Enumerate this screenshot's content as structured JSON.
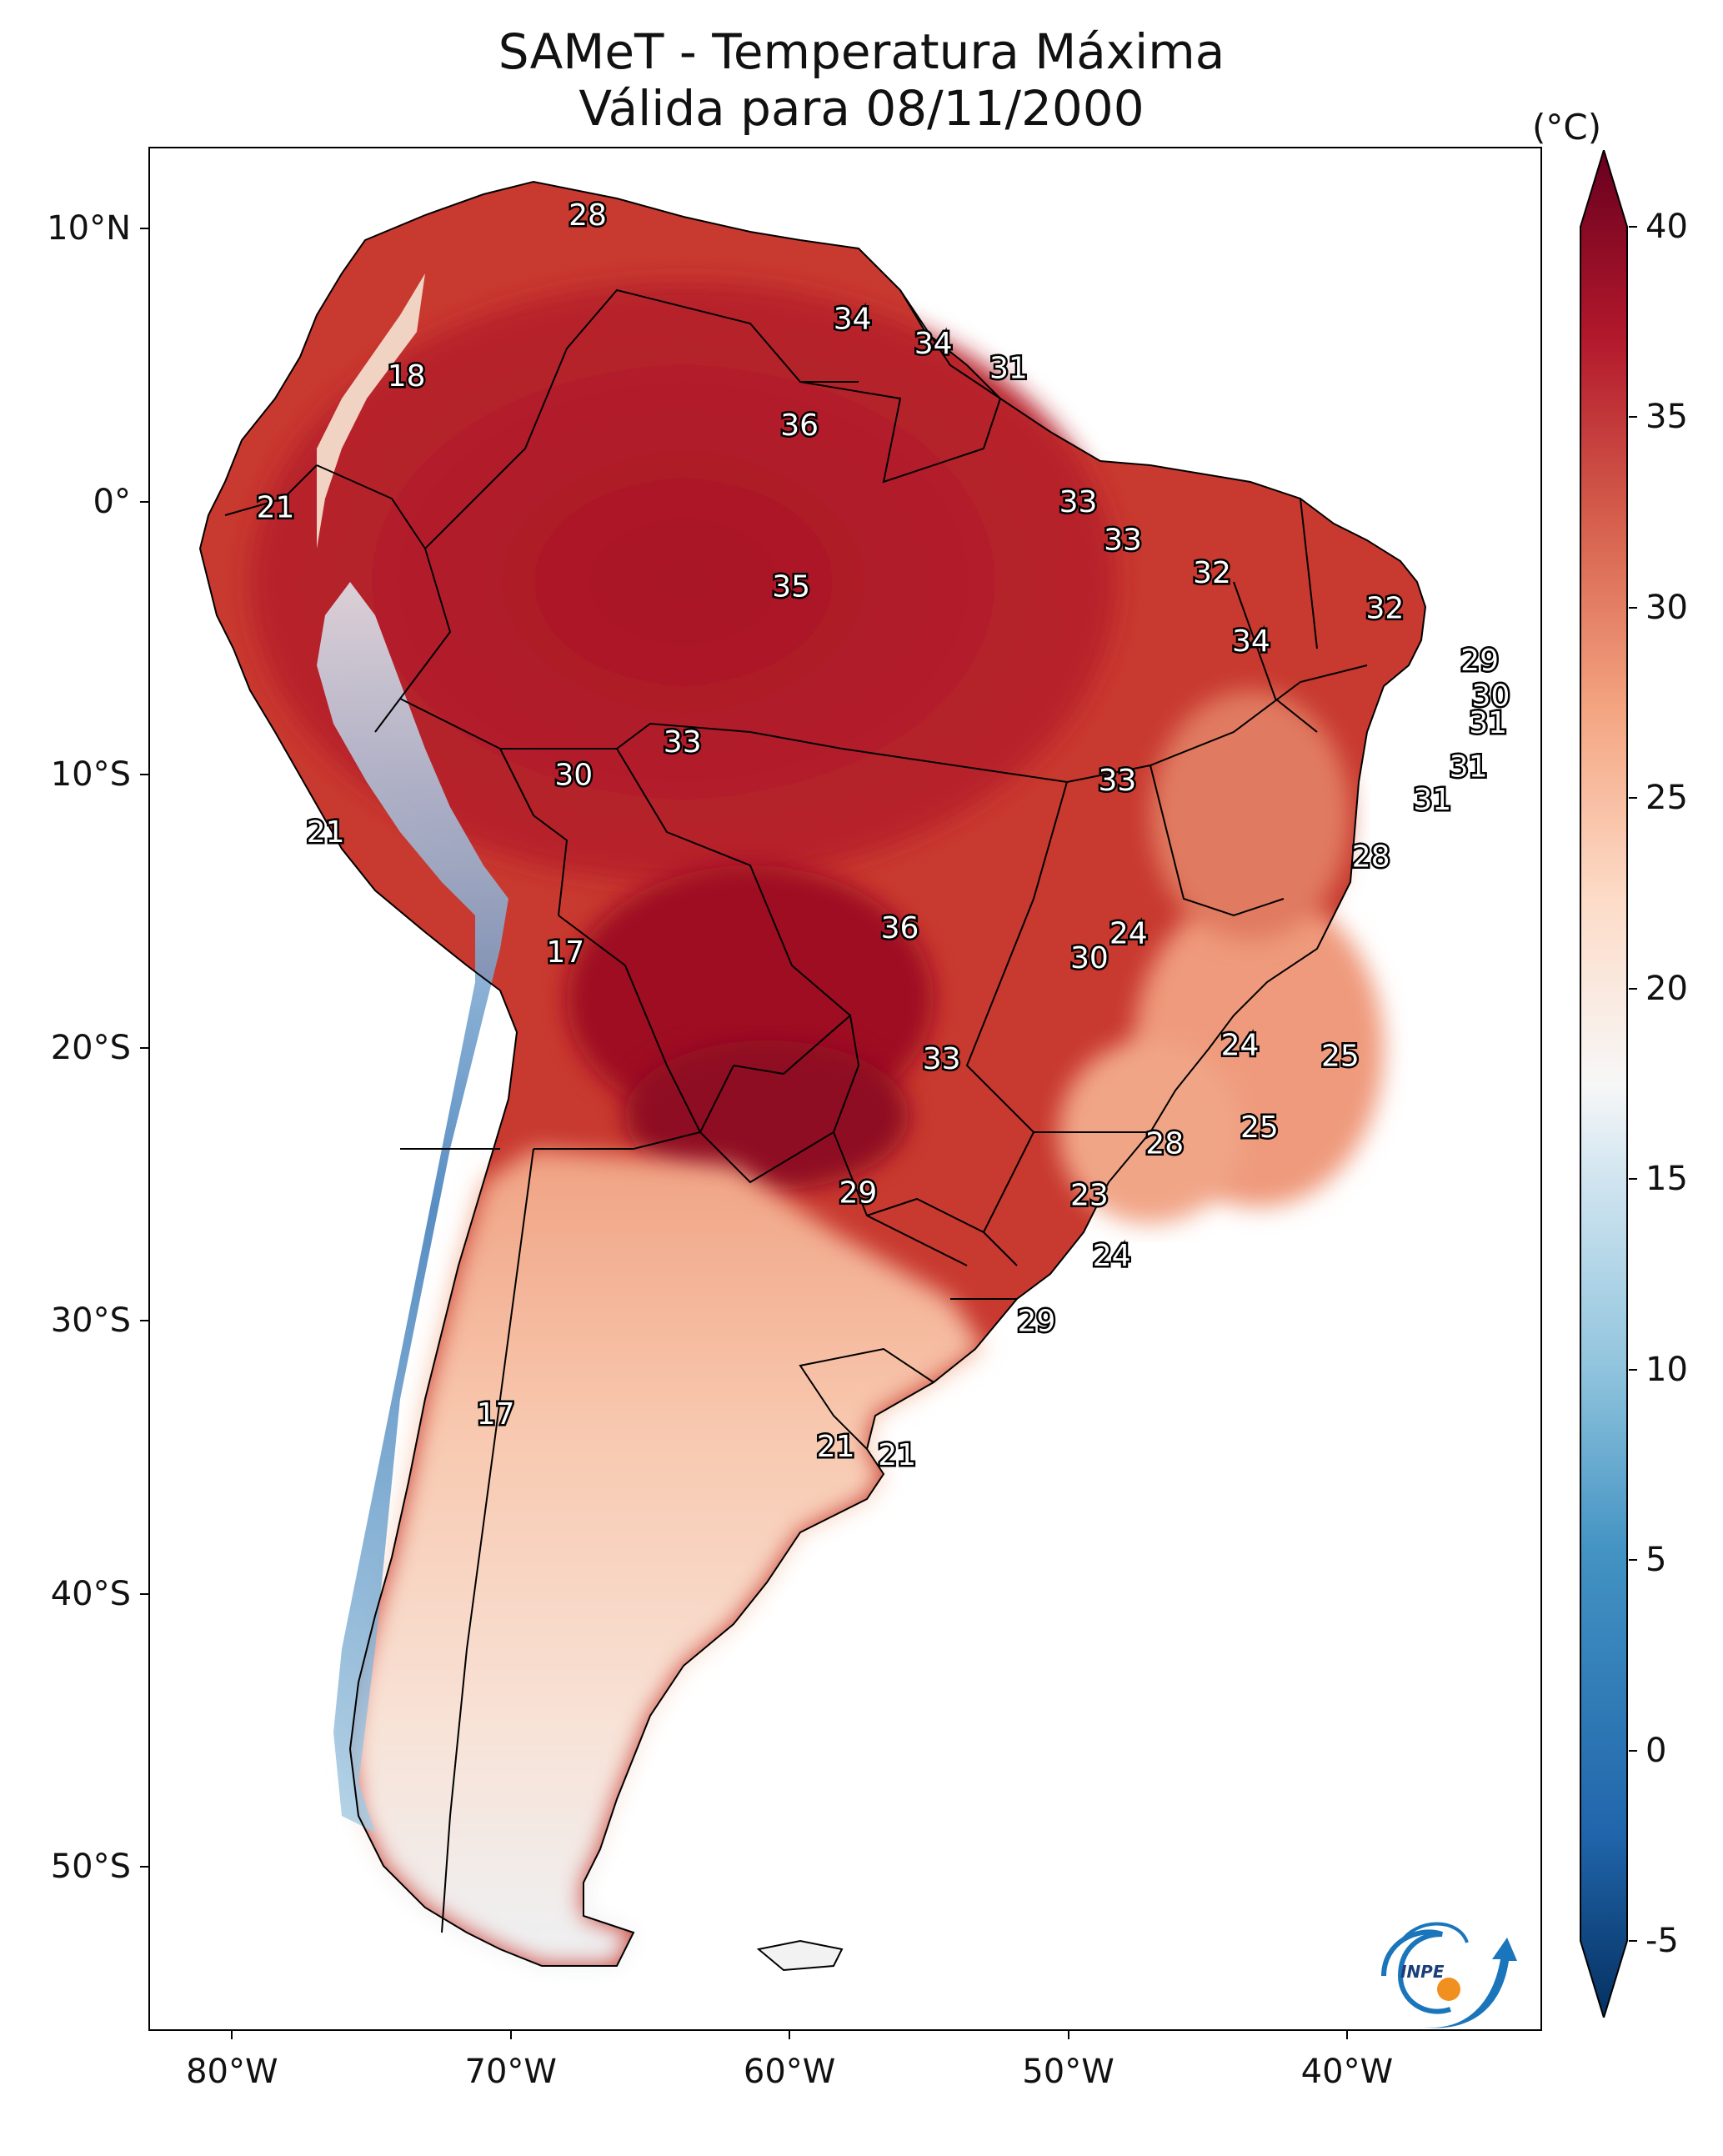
{
  "title": {
    "line1": "SAMeT - Temperatura Máxima",
    "line2": "Válida para 08/11/2000"
  },
  "axes": {
    "lat_ticks": [
      "10°N",
      "0°",
      "10°S",
      "20°S",
      "30°S",
      "40°S",
      "50°S"
    ],
    "lat_values": [
      10,
      0,
      -10,
      -20,
      -30,
      -40,
      -50
    ],
    "lon_ticks": [
      "80°W",
      "70°W",
      "60°W",
      "50°W",
      "40°W"
    ],
    "lon_values": [
      -80,
      -70,
      -60,
      -50,
      -40
    ],
    "lon_range": [
      -83,
      -33
    ],
    "lat_range": [
      -56,
      13
    ]
  },
  "colorbar": {
    "unit": "(°C)",
    "tick_labels": [
      "40",
      "35",
      "30",
      "25",
      "20",
      "15",
      "10",
      "5",
      "0",
      "-5"
    ],
    "tick_values": [
      40,
      35,
      30,
      25,
      20,
      15,
      10,
      5,
      0,
      -5
    ],
    "range": [
      -5,
      40
    ],
    "extend": "both",
    "colormap": "RdBu_r",
    "colors": [
      "#053061",
      "#2166ac",
      "#4393c3",
      "#92c5de",
      "#d1e5f0",
      "#f7f7f7",
      "#fddbc7",
      "#f4a582",
      "#d6604d",
      "#b2182b",
      "#67001f"
    ]
  },
  "station_labels": [
    {
      "value": "28",
      "lon": -67.3,
      "lat": 10.5
    },
    {
      "value": "18",
      "lon": -73.8,
      "lat": 4.6
    },
    {
      "value": "34",
      "lon": -57.8,
      "lat": 6.7
    },
    {
      "value": "34",
      "lon": -54.9,
      "lat": 5.8
    },
    {
      "value": "31",
      "lon": -52.2,
      "lat": 4.9
    },
    {
      "value": "36",
      "lon": -59.7,
      "lat": 2.8
    },
    {
      "value": "21",
      "lon": -78.5,
      "lat": -0.2
    },
    {
      "value": "33",
      "lon": -49.7,
      "lat": 0.0
    },
    {
      "value": "33",
      "lon": -48.1,
      "lat": -1.4
    },
    {
      "value": "35",
      "lon": -60.0,
      "lat": -3.1
    },
    {
      "value": "32",
      "lon": -44.9,
      "lat": -2.6
    },
    {
      "value": "32",
      "lon": -38.7,
      "lat": -3.9
    },
    {
      "value": "34",
      "lon": -43.5,
      "lat": -5.1
    },
    {
      "value": "29",
      "lon": -35.3,
      "lat": -5.8
    },
    {
      "value": "30",
      "lon": -34.9,
      "lat": -7.1
    },
    {
      "value": "31",
      "lon": -35.0,
      "lat": -8.1
    },
    {
      "value": "31",
      "lon": -35.7,
      "lat": -9.7
    },
    {
      "value": "31",
      "lon": -37.0,
      "lat": -10.9
    },
    {
      "value": "33",
      "lon": -63.9,
      "lat": -8.8
    },
    {
      "value": "30",
      "lon": -67.8,
      "lat": -10.0
    },
    {
      "value": "33",
      "lon": -48.3,
      "lat": -10.2
    },
    {
      "value": "28",
      "lon": -39.2,
      "lat": -13.0
    },
    {
      "value": "21",
      "lon": -76.7,
      "lat": -12.1
    },
    {
      "value": "36",
      "lon": -56.1,
      "lat": -15.6
    },
    {
      "value": "24",
      "lon": -47.9,
      "lat": -15.8
    },
    {
      "value": "30",
      "lon": -49.3,
      "lat": -16.7
    },
    {
      "value": "17",
      "lon": -68.1,
      "lat": -16.5
    },
    {
      "value": "24",
      "lon": -43.9,
      "lat": -19.9
    },
    {
      "value": "25",
      "lon": -40.3,
      "lat": -20.3
    },
    {
      "value": "33",
      "lon": -54.6,
      "lat": -20.4
    },
    {
      "value": "25",
      "lon": -43.2,
      "lat": -22.9
    },
    {
      "value": "28",
      "lon": -46.6,
      "lat": -23.5
    },
    {
      "value": "29",
      "lon": -57.6,
      "lat": -25.3
    },
    {
      "value": "23",
      "lon": -49.3,
      "lat": -25.4
    },
    {
      "value": "24",
      "lon": -48.5,
      "lat": -27.6
    },
    {
      "value": "29",
      "lon": -51.2,
      "lat": -30.0
    },
    {
      "value": "17",
      "lon": -70.6,
      "lat": -33.4
    },
    {
      "value": "21",
      "lon": -58.4,
      "lat": -34.6
    },
    {
      "value": "21",
      "lon": -56.2,
      "lat": -34.9
    }
  ],
  "logo": {
    "text": "INPE"
  }
}
